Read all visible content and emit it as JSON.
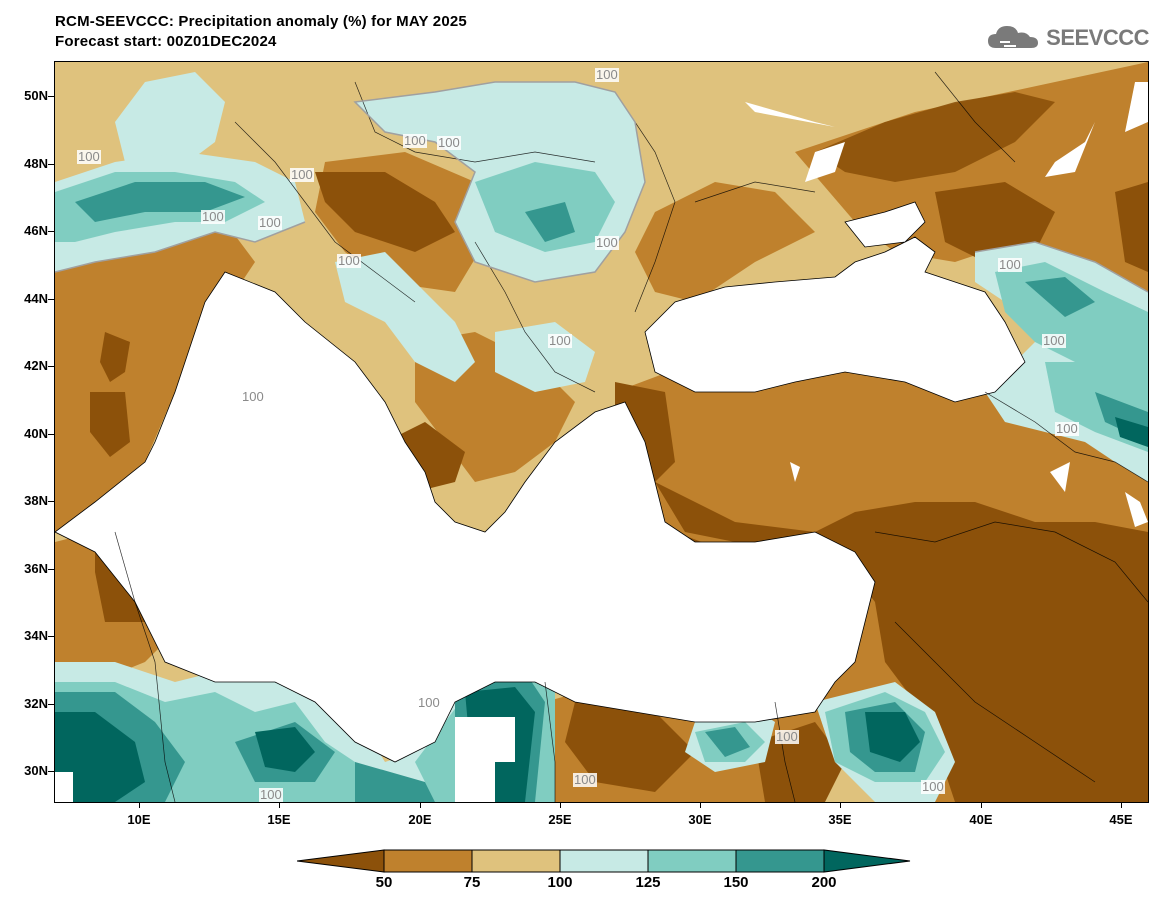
{
  "header": {
    "title": "RCM-SEEVCCC: Precipitation anomaly (%) for MAY 2025",
    "subtitle": "Forecast start: 00Z01DEC2024"
  },
  "logo": {
    "text": "SEEVCCC",
    "icon": "cloud-icon"
  },
  "map": {
    "lat_labels": [
      "50N",
      "48N",
      "46N",
      "44N",
      "42N",
      "40N",
      "38N",
      "36N",
      "34N",
      "32N",
      "30N"
    ],
    "lon_labels": [
      "10E",
      "15E",
      "20E",
      "25E",
      "30E",
      "35E",
      "40E",
      "45E"
    ],
    "contour_value_label": "100"
  },
  "colorbar": {
    "labels": [
      "50",
      "75",
      "100",
      "125",
      "150",
      "200"
    ],
    "colors": [
      "#8c510a",
      "#bf812d",
      "#dfc27d",
      "#c7eae5",
      "#80cdc1",
      "#35978f",
      "#01665e"
    ]
  },
  "colors": {
    "sea": "#ffffff",
    "very_dry": "#8c510a",
    "dry": "#bf812d",
    "slightly_dry": "#dfc27d",
    "slightly_wet": "#c7eae5",
    "wet": "#80cdc1",
    "very_wet": "#35978f",
    "extreme_wet": "#01665e"
  }
}
